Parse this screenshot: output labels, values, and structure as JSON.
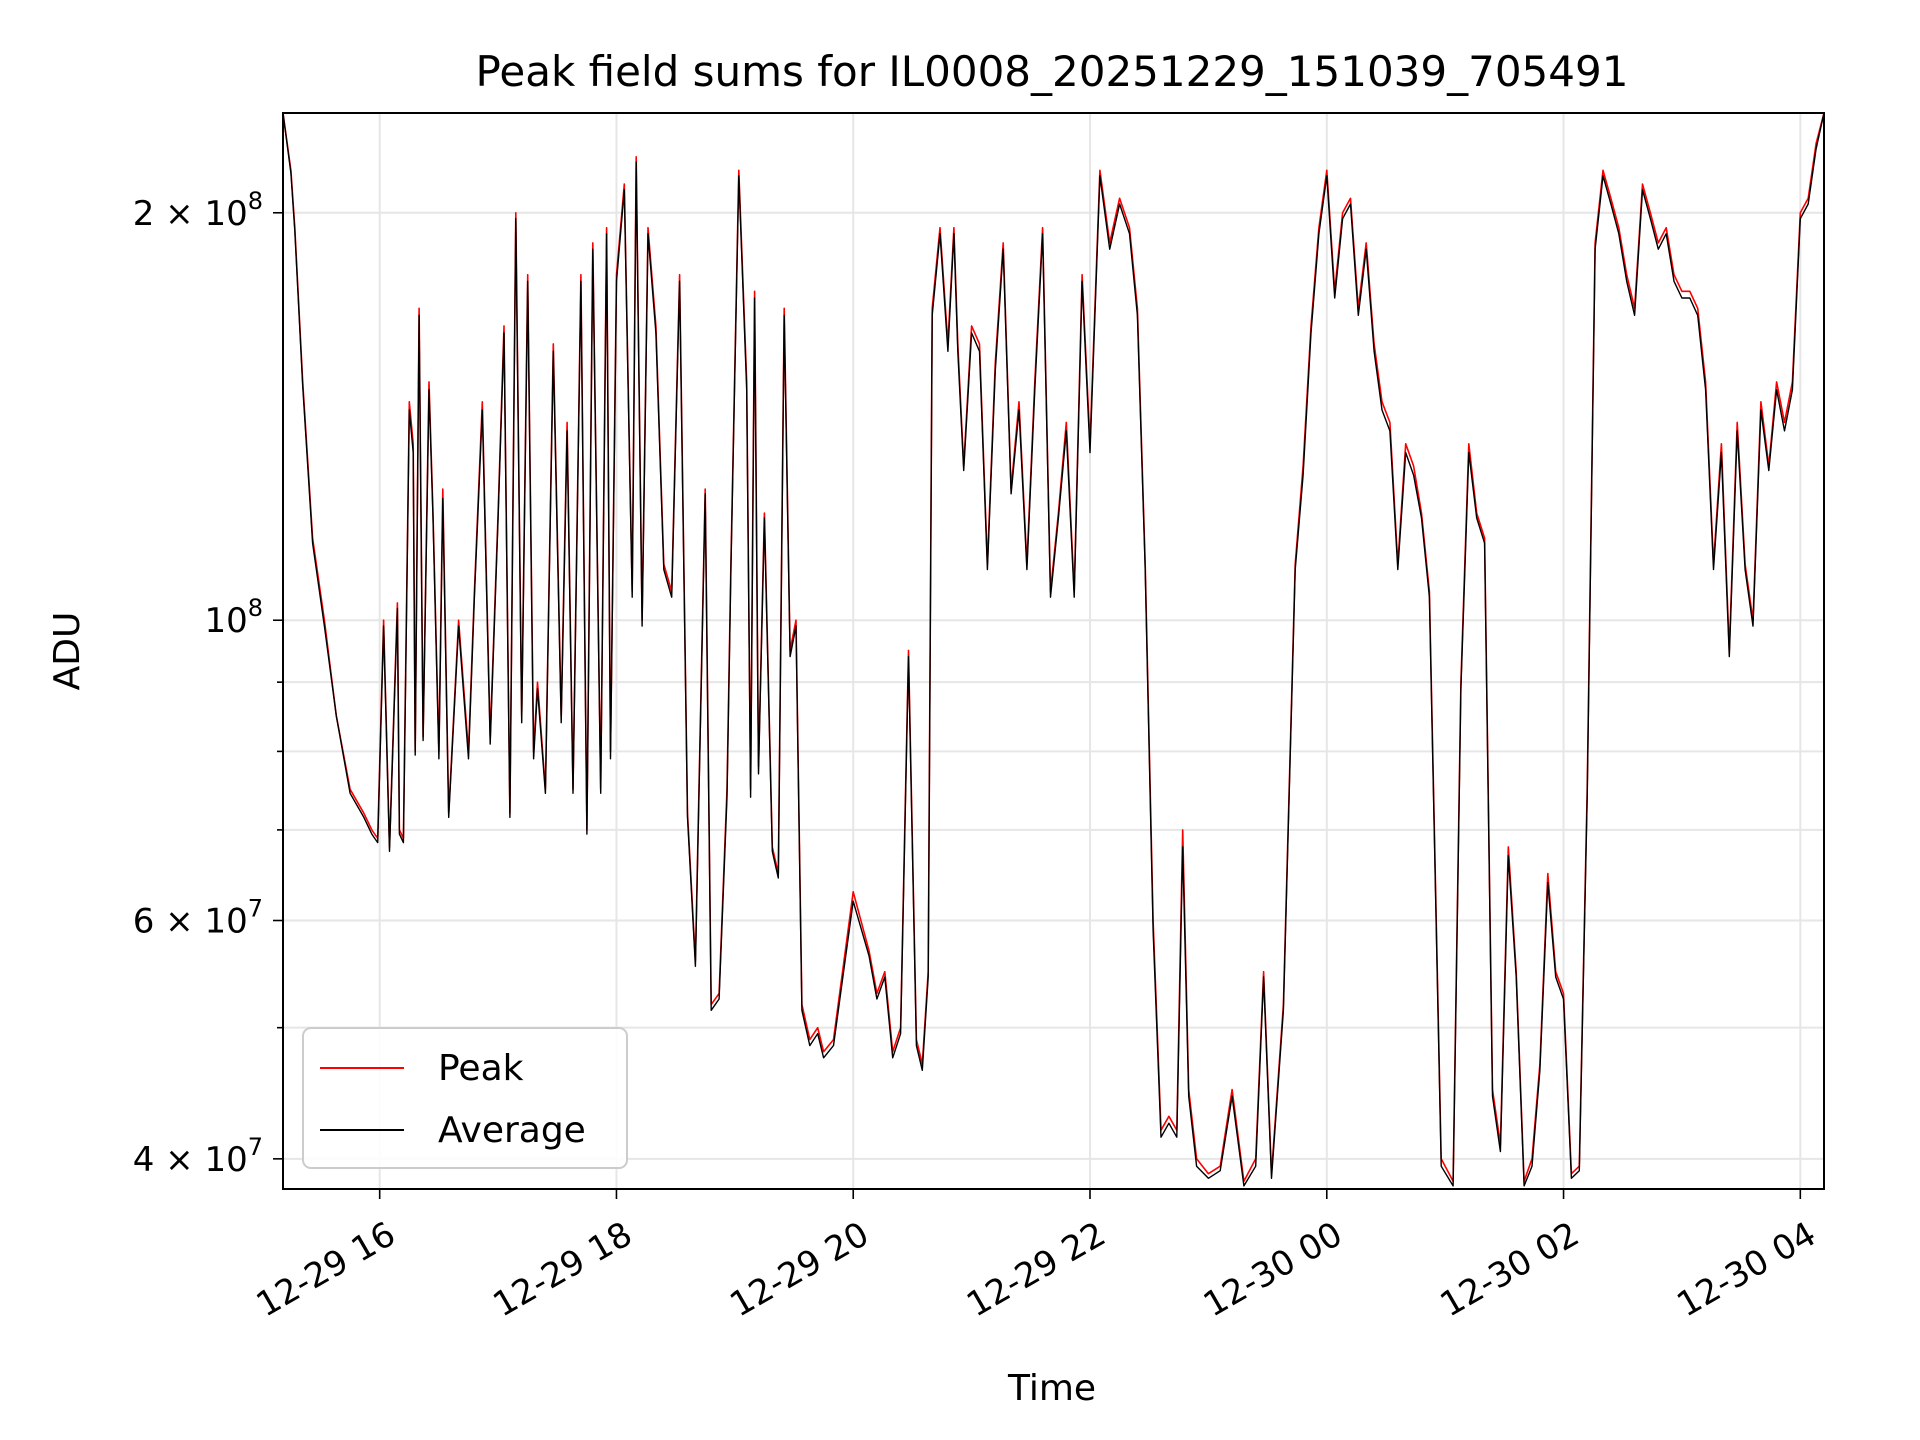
{
  "chart_data": {
    "type": "line",
    "title": "Peak field sums for IL0008_20251229_151039_705491",
    "xlabel": "Time",
    "ylabel": "ADU",
    "y_scale": "log",
    "ylim": [
      38000000,
      237000000
    ],
    "xlim": [
      "2025-12-29 15:11",
      "2025-12-30 04:12"
    ],
    "x_ticks": [
      "2025-12-29 16:00",
      "2025-12-29 18:00",
      "2025-12-29 20:00",
      "2025-12-29 22:00",
      "2025-12-30 00:00",
      "2025-12-30 02:00",
      "2025-12-30 04:00"
    ],
    "x_tick_labels": [
      "12-29 16",
      "12-29 18",
      "12-29 20",
      "12-29 22",
      "12-30 00",
      "12-30 02",
      "12-30 04"
    ],
    "y_major_ticks": [
      40000000,
      60000000,
      100000000,
      200000000
    ],
    "y_tick_labels": [
      {
        "mantissa": "4",
        "exp": "7"
      },
      {
        "mantissa": "6",
        "exp": "7"
      },
      {
        "mantissa": "",
        "exp": "8"
      },
      {
        "mantissa": "2",
        "exp": "8"
      }
    ],
    "y_minor_ticks": [
      50000000,
      70000000,
      80000000,
      90000000
    ],
    "grid": true,
    "legend_position": "lower-left",
    "x": [
      "2025-12-29 15:11",
      "2025-12-29 15:15",
      "2025-12-29 15:17",
      "2025-12-29 15:21",
      "2025-12-29 15:26",
      "2025-12-29 15:32",
      "2025-12-29 15:38",
      "2025-12-29 15:45",
      "2025-12-29 15:52",
      "2025-12-29 15:56",
      "2025-12-29 15:59",
      "2025-12-29 16:02",
      "2025-12-29 16:05",
      "2025-12-29 16:09",
      "2025-12-29 16:10",
      "2025-12-29 16:12",
      "2025-12-29 16:15",
      "2025-12-29 16:17",
      "2025-12-29 16:18",
      "2025-12-29 16:20",
      "2025-12-29 16:22",
      "2025-12-29 16:25",
      "2025-12-29 16:27",
      "2025-12-29 16:30",
      "2025-12-29 16:32",
      "2025-12-29 16:35",
      "2025-12-29 16:40",
      "2025-12-29 16:45",
      "2025-12-29 16:48",
      "2025-12-29 16:52",
      "2025-12-29 16:56",
      "2025-12-29 17:00",
      "2025-12-29 17:03",
      "2025-12-29 17:06",
      "2025-12-29 17:09",
      "2025-12-29 17:12",
      "2025-12-29 17:15",
      "2025-12-29 17:18",
      "2025-12-29 17:20",
      "2025-12-29 17:24",
      "2025-12-29 17:28",
      "2025-12-29 17:32",
      "2025-12-29 17:35",
      "2025-12-29 17:38",
      "2025-12-29 17:42",
      "2025-12-29 17:45",
      "2025-12-29 17:48",
      "2025-12-29 17:52",
      "2025-12-29 17:55",
      "2025-12-29 17:57",
      "2025-12-29 18:00",
      "2025-12-29 18:04",
      "2025-12-29 18:08",
      "2025-12-29 18:10",
      "2025-12-29 18:13",
      "2025-12-29 18:16",
      "2025-12-29 18:20",
      "2025-12-29 18:24",
      "2025-12-29 18:28",
      "2025-12-29 18:32",
      "2025-12-29 18:36",
      "2025-12-29 18:40",
      "2025-12-29 18:45",
      "2025-12-29 18:48",
      "2025-12-29 18:52",
      "2025-12-29 18:56",
      "2025-12-29 18:58",
      "2025-12-29 19:02",
      "2025-12-29 19:06",
      "2025-12-29 19:08",
      "2025-12-29 19:10",
      "2025-12-29 19:12",
      "2025-12-29 19:15",
      "2025-12-29 19:19",
      "2025-12-29 19:22",
      "2025-12-29 19:25",
      "2025-12-29 19:28",
      "2025-12-29 19:31",
      "2025-12-29 19:34",
      "2025-12-29 19:38",
      "2025-12-29 19:42",
      "2025-12-29 19:45",
      "2025-12-29 19:50",
      "2025-12-29 20:00",
      "2025-12-29 20:08",
      "2025-12-29 20:12",
      "2025-12-29 20:16",
      "2025-12-29 20:20",
      "2025-12-29 20:24",
      "2025-12-29 20:28",
      "2025-12-29 20:32",
      "2025-12-29 20:35",
      "2025-12-29 20:38",
      "2025-12-29 20:40",
      "2025-12-29 20:44",
      "2025-12-29 20:48",
      "2025-12-29 20:51",
      "2025-12-29 20:53",
      "2025-12-29 20:56",
      "2025-12-29 21:00",
      "2025-12-29 21:04",
      "2025-12-29 21:08",
      "2025-12-29 21:12",
      "2025-12-29 21:16",
      "2025-12-29 21:20",
      "2025-12-29 21:24",
      "2025-12-29 21:28",
      "2025-12-29 21:32",
      "2025-12-29 21:36",
      "2025-12-29 21:40",
      "2025-12-29 21:44",
      "2025-12-29 21:48",
      "2025-12-29 21:52",
      "2025-12-29 21:56",
      "2025-12-29 22:00",
      "2025-12-29 22:05",
      "2025-12-29 22:10",
      "2025-12-29 22:15",
      "2025-12-29 22:20",
      "2025-12-29 22:24",
      "2025-12-29 22:28",
      "2025-12-29 22:32",
      "2025-12-29 22:36",
      "2025-12-29 22:40",
      "2025-12-29 22:44",
      "2025-12-29 22:47",
      "2025-12-29 22:50",
      "2025-12-29 22:54",
      "2025-12-29 23:00",
      "2025-12-29 23:06",
      "2025-12-29 23:12",
      "2025-12-29 23:18",
      "2025-12-29 23:24",
      "2025-12-29 23:28",
      "2025-12-29 23:32",
      "2025-12-29 23:38",
      "2025-12-29 23:44",
      "2025-12-29 23:48",
      "2025-12-29 23:52",
      "2025-12-29 23:56",
      "2025-12-30 00:00",
      "2025-12-30 00:04",
      "2025-12-30 00:08",
      "2025-12-30 00:12",
      "2025-12-30 00:16",
      "2025-12-30 00:20",
      "2025-12-30 00:24",
      "2025-12-30 00:28",
      "2025-12-30 00:32",
      "2025-12-30 00:36",
      "2025-12-30 00:40",
      "2025-12-30 00:44",
      "2025-12-30 00:48",
      "2025-12-30 00:52",
      "2025-12-30 00:58",
      "2025-12-30 01:04",
      "2025-12-30 01:08",
      "2025-12-30 01:12",
      "2025-12-30 01:16",
      "2025-12-30 01:20",
      "2025-12-30 01:24",
      "2025-12-30 01:28",
      "2025-12-30 01:32",
      "2025-12-30 01:36",
      "2025-12-30 01:40",
      "2025-12-30 01:44",
      "2025-12-30 01:48",
      "2025-12-30 01:52",
      "2025-12-30 01:56",
      "2025-12-30 02:00",
      "2025-12-30 02:04",
      "2025-12-30 02:08",
      "2025-12-30 02:12",
      "2025-12-30 02:16",
      "2025-12-30 02:20",
      "2025-12-30 02:24",
      "2025-12-30 02:28",
      "2025-12-30 02:32",
      "2025-12-30 02:36",
      "2025-12-30 02:40",
      "2025-12-30 02:44",
      "2025-12-30 02:48",
      "2025-12-30 02:52",
      "2025-12-30 02:56",
      "2025-12-30 03:00",
      "2025-12-30 03:04",
      "2025-12-30 03:08",
      "2025-12-30 03:12",
      "2025-12-30 03:16",
      "2025-12-30 03:20",
      "2025-12-30 03:24",
      "2025-12-30 03:28",
      "2025-12-30 03:32",
      "2025-12-30 03:36",
      "2025-12-30 03:40",
      "2025-12-30 03:44",
      "2025-12-30 03:48",
      "2025-12-30 03:52",
      "2025-12-30 03:56",
      "2025-12-30 04:00",
      "2025-12-30 04:04",
      "2025-12-30 04:08",
      "2025-12-30 04:12"
    ],
    "series": [
      {
        "name": "Peak",
        "color": "#ff0000",
        "values": [
          237000000,
          215000000,
          195000000,
          150000000,
          115000000,
          100000000,
          85000000,
          75000000,
          72000000,
          70000000,
          69000000,
          100000000,
          68000000,
          103000000,
          70000000,
          69000000,
          145000000,
          135000000,
          80000000,
          170000000,
          82000000,
          150000000,
          120000000,
          80000000,
          125000000,
          72000000,
          100000000,
          80000000,
          105000000,
          145000000,
          82000000,
          120000000,
          165000000,
          72000000,
          200000000,
          85000000,
          180000000,
          80000000,
          90000000,
          75000000,
          160000000,
          85000000,
          140000000,
          75000000,
          180000000,
          70000000,
          190000000,
          75000000,
          195000000,
          80000000,
          180000000,
          210000000,
          105000000,
          220000000,
          100000000,
          195000000,
          165000000,
          110000000,
          105000000,
          180000000,
          72000000,
          56000000,
          125000000,
          52000000,
          53000000,
          75000000,
          110000000,
          215000000,
          150000000,
          75000000,
          175000000,
          78000000,
          120000000,
          68000000,
          65000000,
          170000000,
          95000000,
          100000000,
          52000000,
          49000000,
          50000000,
          48000000,
          49000000,
          63000000,
          57000000,
          53000000,
          55000000,
          48000000,
          50000000,
          95000000,
          49000000,
          47000000,
          55000000,
          170000000,
          195000000,
          160000000,
          195000000,
          160000000,
          130000000,
          165000000,
          160000000,
          110000000,
          155000000,
          190000000,
          125000000,
          145000000,
          110000000,
          150000000,
          195000000,
          105000000,
          120000000,
          140000000,
          105000000,
          180000000,
          135000000,
          215000000,
          190000000,
          205000000,
          195000000,
          170000000,
          110000000,
          60000000,
          42000000,
          43000000,
          42000000,
          70000000,
          45000000,
          40000000,
          39000000,
          39500000,
          45000000,
          38500000,
          40000000,
          55000000,
          39000000,
          52000000,
          110000000,
          130000000,
          165000000,
          195000000,
          215000000,
          175000000,
          200000000,
          205000000,
          170000000,
          190000000,
          160000000,
          145000000,
          140000000,
          110000000,
          135000000,
          130000000,
          120000000,
          105000000,
          40000000,
          38500000,
          90000000,
          135000000,
          120000000,
          115000000,
          45000000,
          41000000,
          68000000,
          55000000,
          38500000,
          40000000,
          47000000,
          65000000,
          55000000,
          53000000,
          39000000,
          39500000,
          75000000,
          190000000,
          215000000,
          205000000,
          195000000,
          180000000,
          170000000,
          210000000,
          200000000,
          190000000,
          195000000,
          180000000,
          175000000,
          175000000,
          170000000,
          150000000,
          110000000,
          135000000,
          95000000,
          140000000,
          110000000,
          100000000,
          145000000,
          130000000,
          150000000,
          140000000,
          150000000,
          200000000,
          205000000,
          225000000,
          237000000
        ]
      },
      {
        "name": "Average",
        "color": "#000000",
        "values": [
          237000000,
          214000000,
          194000000,
          149000000,
          114000000,
          99000000,
          85000000,
          74500000,
          71500000,
          69500000,
          68500000,
          99000000,
          67500000,
          102000000,
          69500000,
          68500000,
          143000000,
          133000000,
          79500000,
          168000000,
          81500000,
          148000000,
          119000000,
          79000000,
          123000000,
          71500000,
          99000000,
          79000000,
          104000000,
          143000000,
          81000000,
          119000000,
          163000000,
          71500000,
          198000000,
          84000000,
          178000000,
          79000000,
          89000000,
          74500000,
          158000000,
          84000000,
          138000000,
          74500000,
          178000000,
          69500000,
          188000000,
          74500000,
          193000000,
          79000000,
          178000000,
          208000000,
          104000000,
          218000000,
          99000000,
          193000000,
          163000000,
          109000000,
          104000000,
          178000000,
          71500000,
          55500000,
          124000000,
          51500000,
          52500000,
          74000000,
          109000000,
          213000000,
          148000000,
          74000000,
          173000000,
          77000000,
          119000000,
          67500000,
          64500000,
          168000000,
          94000000,
          99000000,
          51500000,
          48500000,
          49500000,
          47500000,
          48500000,
          62000000,
          56500000,
          52500000,
          54500000,
          47500000,
          49500000,
          94000000,
          48500000,
          46500000,
          54500000,
          168000000,
          193000000,
          158000000,
          193000000,
          158000000,
          129000000,
          163000000,
          158000000,
          109000000,
          153000000,
          188000000,
          124000000,
          143000000,
          109000000,
          148000000,
          193000000,
          104000000,
          119000000,
          138000000,
          104000000,
          178000000,
          133000000,
          213000000,
          188000000,
          203000000,
          193000000,
          168000000,
          109000000,
          59000000,
          41500000,
          42500000,
          41500000,
          68000000,
          44500000,
          39500000,
          38700000,
          39200000,
          44500000,
          38200000,
          39500000,
          54500000,
          38700000,
          51500000,
          109000000,
          128000000,
          163000000,
          193000000,
          213000000,
          173000000,
          198000000,
          203000000,
          168000000,
          188000000,
          158000000,
          143000000,
          138000000,
          109000000,
          133000000,
          128000000,
          119000000,
          104000000,
          39500000,
          38200000,
          89000000,
          133000000,
          119000000,
          114000000,
          44500000,
          40500000,
          67000000,
          54500000,
          38200000,
          39500000,
          46500000,
          64000000,
          54500000,
          52500000,
          38700000,
          39200000,
          74000000,
          188000000,
          213000000,
          203000000,
          193000000,
          178000000,
          168000000,
          208000000,
          198000000,
          188000000,
          193000000,
          178000000,
          173000000,
          173000000,
          168000000,
          148000000,
          109000000,
          133000000,
          94000000,
          138000000,
          109000000,
          99000000,
          143000000,
          129000000,
          148000000,
          138000000,
          148000000,
          198000000,
          203000000,
          223000000,
          237000000
        ]
      }
    ]
  }
}
